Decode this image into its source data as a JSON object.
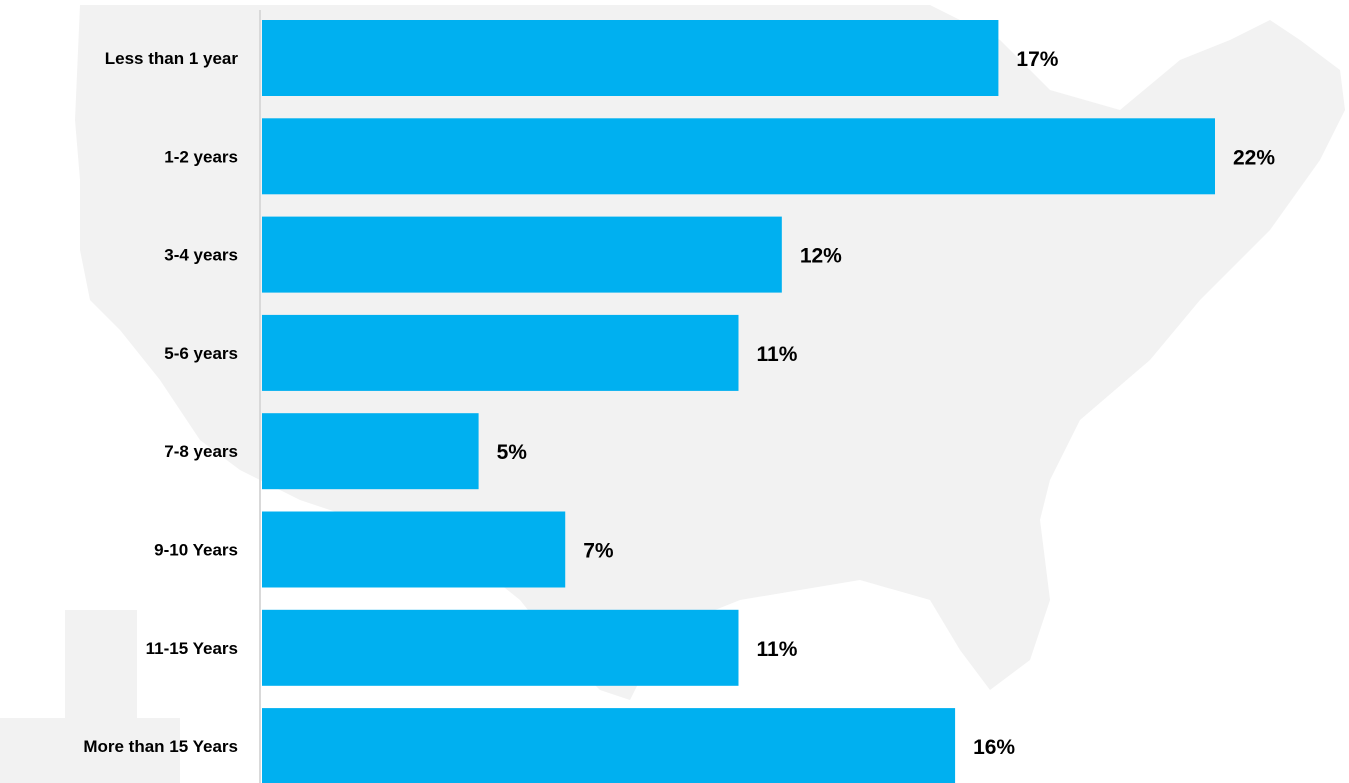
{
  "colors": {
    "bar": "#00b0f0",
    "background_map": "#f2f2f2",
    "axis": "#d9d9d9"
  },
  "chart_data": {
    "type": "bar",
    "orientation": "horizontal",
    "title": "",
    "xlabel": "",
    "ylabel": "",
    "xlim": [
      0,
      22
    ],
    "grid": false,
    "legend": "none",
    "categories": [
      "Less than 1 year",
      "1-2 years",
      "3-4 years",
      "5-6 years",
      "7-8 years",
      "9-10 Years",
      "11-15 Years",
      "More than 15 Years"
    ],
    "values": [
      17,
      22,
      12,
      11,
      5,
      7,
      11,
      16
    ],
    "value_labels": [
      "17%",
      "22%",
      "12%",
      "11%",
      "5%",
      "7%",
      "11%",
      "16%"
    ]
  }
}
